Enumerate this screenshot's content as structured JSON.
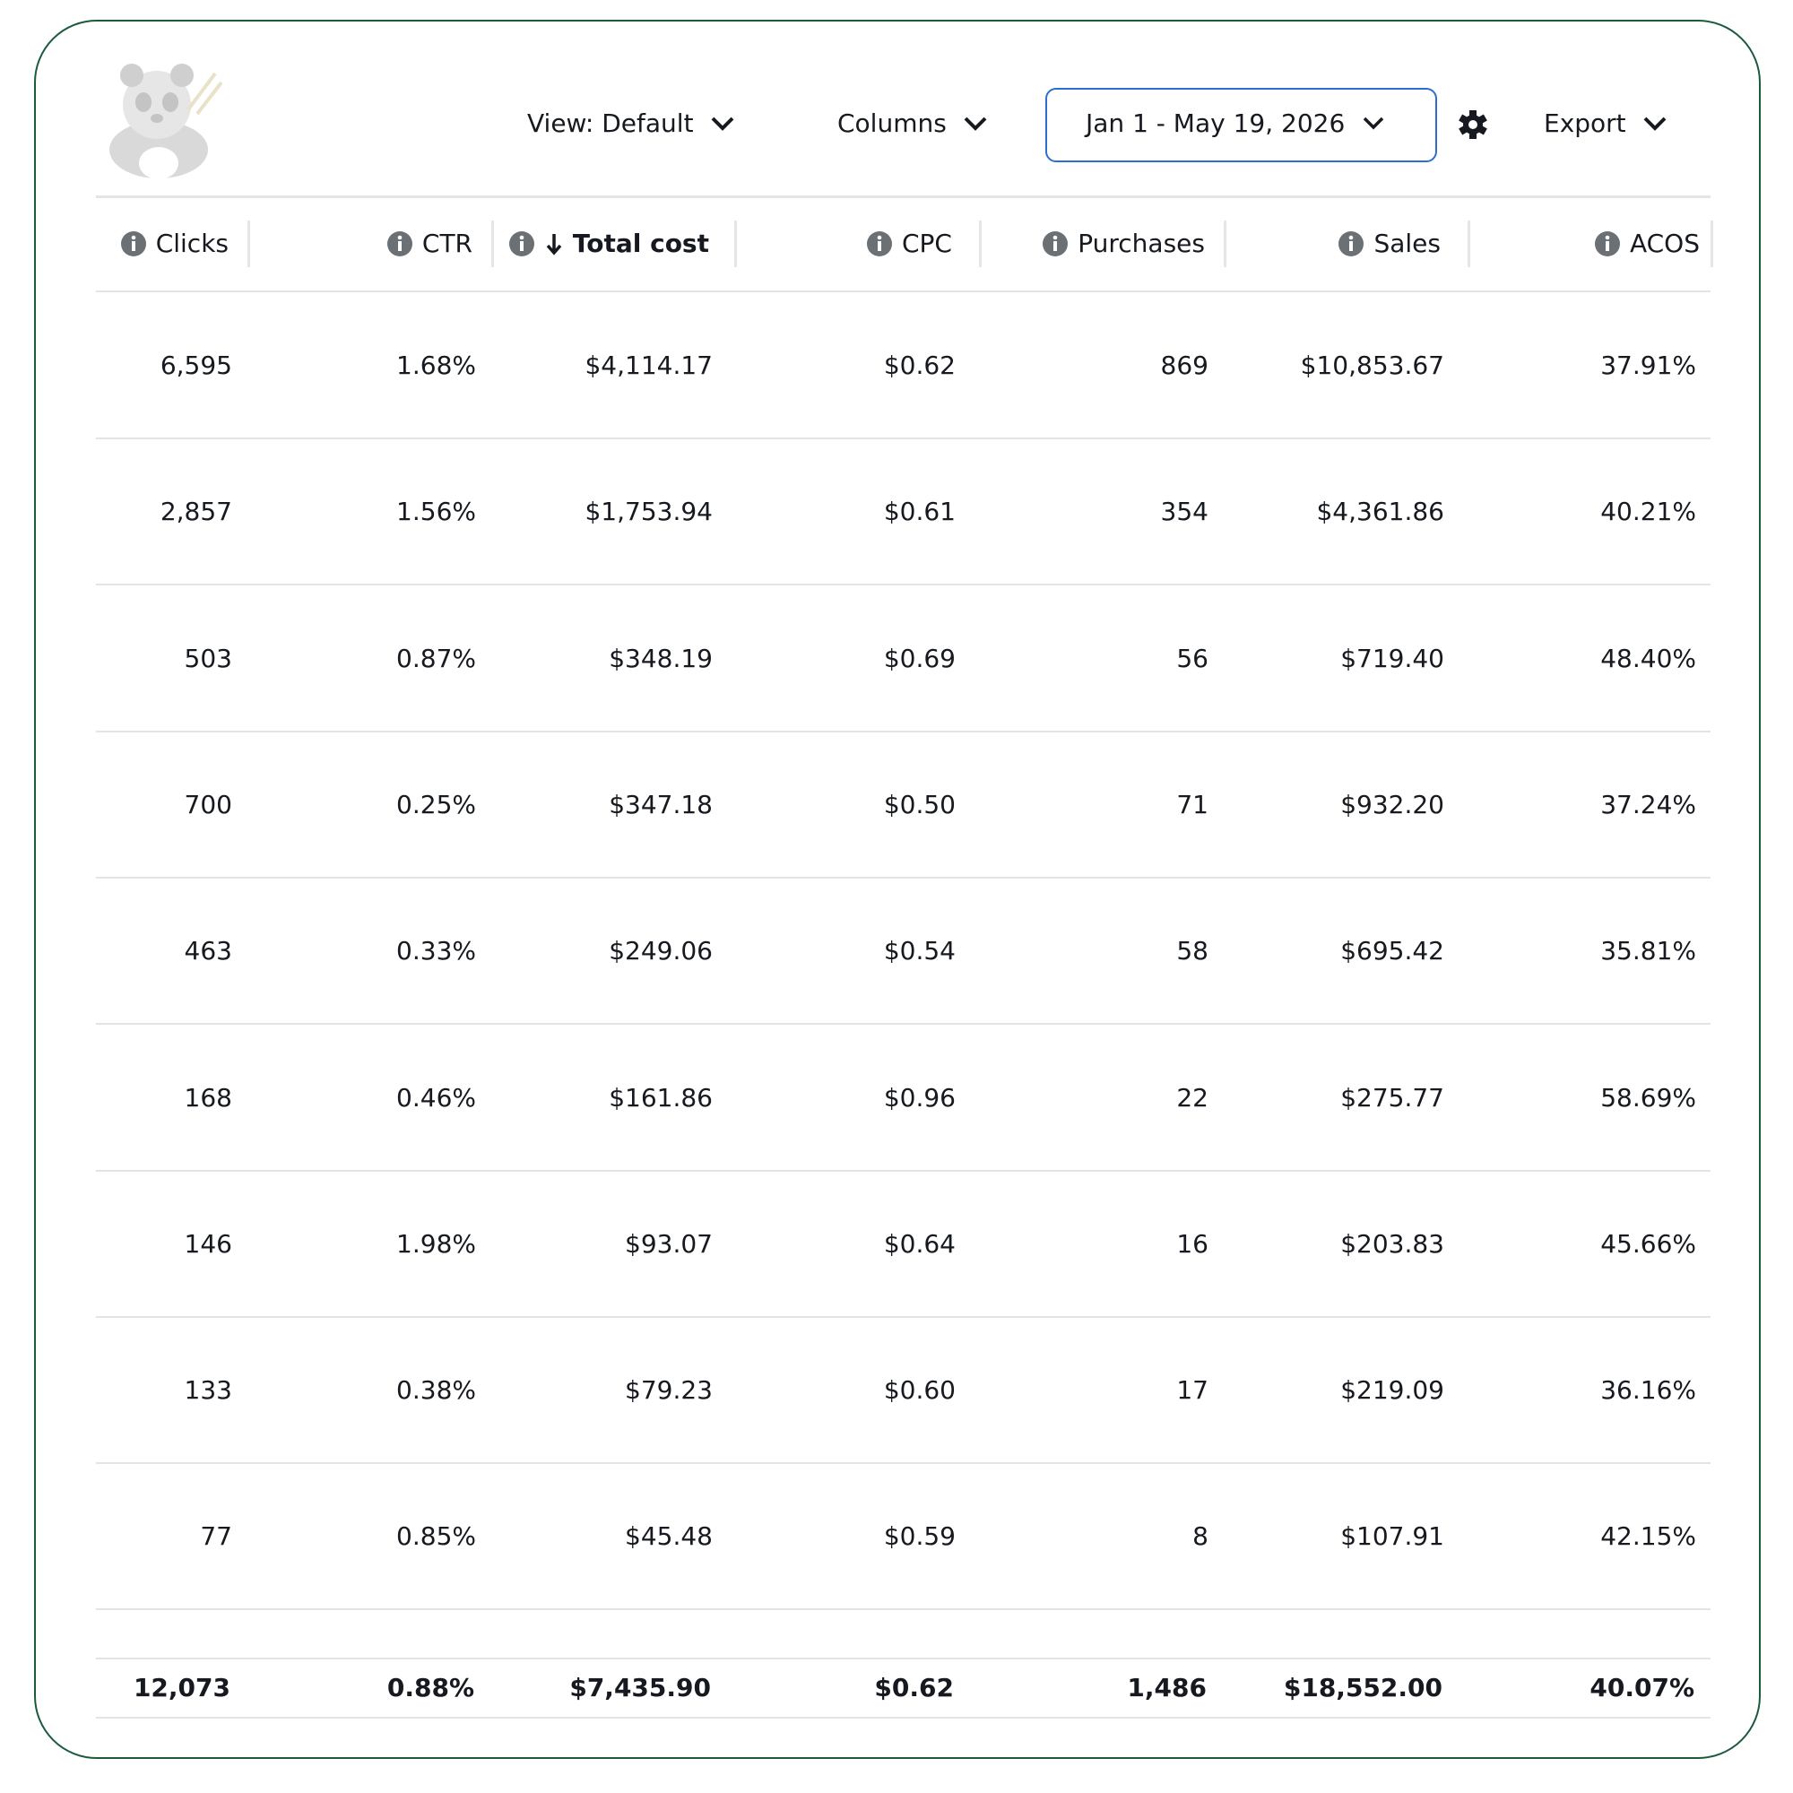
{
  "toolbar": {
    "view": "View: Default",
    "columns": "Columns",
    "date_range": "Jan 1 - May 19, 2026",
    "export": "Export"
  },
  "table": {
    "headers": [
      "Clicks",
      "CTR",
      "Total cost",
      "CPC",
      "Purchases",
      "Sales",
      "ACOS"
    ],
    "sorted_column": 2,
    "rows": [
      [
        "6,595",
        "1.68%",
        "$4,114.17",
        "$0.62",
        "869",
        "$10,853.67",
        "37.91%"
      ],
      [
        "2,857",
        "1.56%",
        "$1,753.94",
        "$0.61",
        "354",
        "$4,361.86",
        "40.21%"
      ],
      [
        "503",
        "0.87%",
        "$348.19",
        "$0.69",
        "56",
        "$719.40",
        "48.40%"
      ],
      [
        "700",
        "0.25%",
        "$347.18",
        "$0.50",
        "71",
        "$932.20",
        "37.24%"
      ],
      [
        "463",
        "0.33%",
        "$249.06",
        "$0.54",
        "58",
        "$695.42",
        "35.81%"
      ],
      [
        "168",
        "0.46%",
        "$161.86",
        "$0.96",
        "22",
        "$275.77",
        "58.69%"
      ],
      [
        "146",
        "1.98%",
        "$93.07",
        "$0.64",
        "16",
        "$203.83",
        "45.66%"
      ],
      [
        "133",
        "0.38%",
        "$79.23",
        "$0.60",
        "17",
        "$219.09",
        "36.16%"
      ],
      [
        "77",
        "0.85%",
        "$45.48",
        "$0.59",
        "8",
        "$107.91",
        "42.15%"
      ]
    ],
    "totals": [
      "12,073",
      "0.88%",
      "$7,435.90",
      "$0.62",
      "1,486",
      "$18,552.00",
      "40.07%"
    ]
  }
}
